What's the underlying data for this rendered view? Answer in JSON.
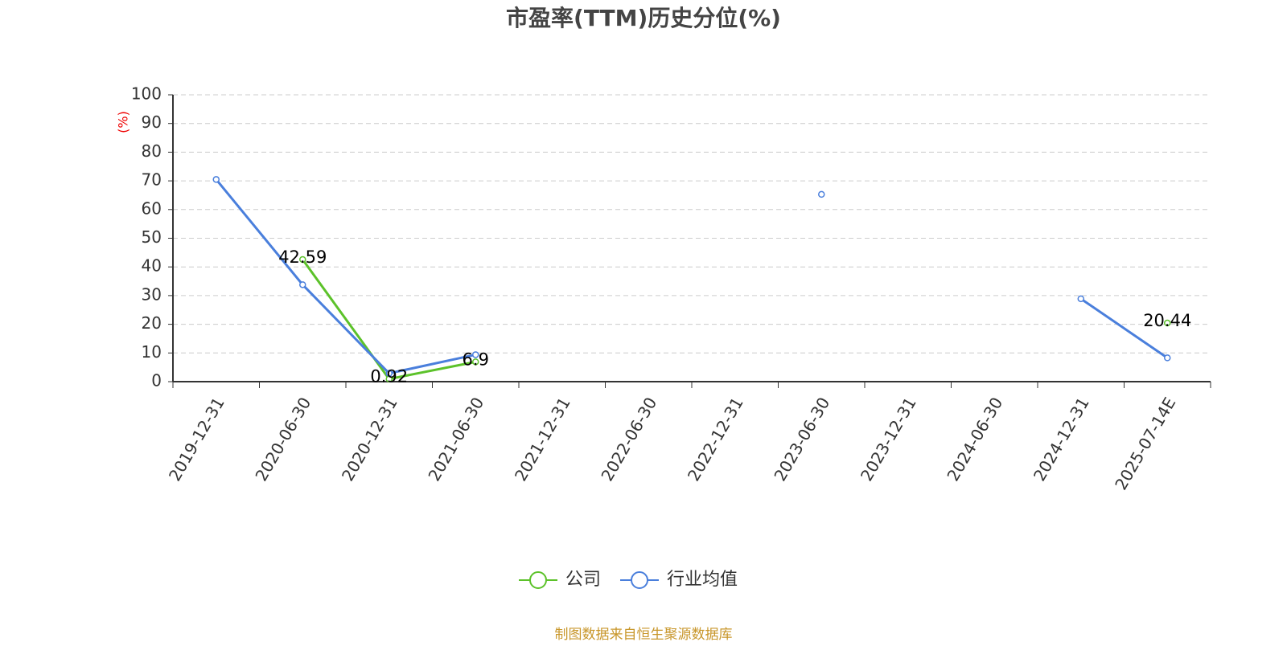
{
  "chart_data": {
    "type": "line",
    "title": "市盈率(TTM)历史分位(%)",
    "y_label": "(%)",
    "source": "制图数据来自恒生聚源数据库",
    "categories": [
      "2019-12-31",
      "2020-06-30",
      "2020-12-31",
      "2021-06-30",
      "2021-12-31",
      "2022-06-30",
      "2022-12-31",
      "2023-06-30",
      "2023-12-31",
      "2024-06-30",
      "2024-12-31",
      "2025-07-14E"
    ],
    "series": [
      {
        "name": "公司",
        "color": "#5cc22a",
        "values": [
          null,
          42.59,
          0.92,
          6.9,
          null,
          null,
          null,
          null,
          null,
          null,
          null,
          20.44
        ],
        "data_labels": true
      },
      {
        "name": "行业均值",
        "color": "#4a7fdc",
        "values": [
          70.5,
          33.8,
          2.9,
          9.4,
          null,
          null,
          null,
          65.3,
          null,
          null,
          28.9,
          8.3
        ],
        "data_labels": false
      }
    ],
    "ylim": [
      0,
      100
    ],
    "yticks": [
      0,
      10,
      20,
      30,
      40,
      50,
      60,
      70,
      80,
      90,
      100
    ],
    "grid": true,
    "legend": "bottom"
  }
}
